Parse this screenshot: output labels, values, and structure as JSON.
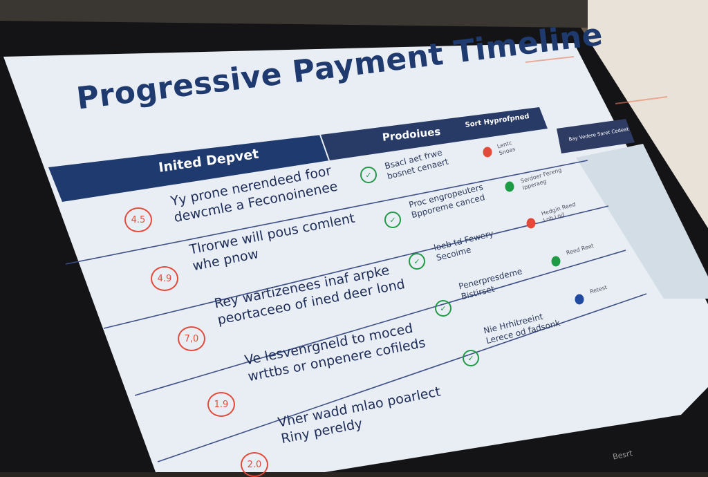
{
  "screen": {
    "title": "Progressive Payment Timeline",
    "header_left": "Inited Depvet",
    "header_mid": "Prodoiues",
    "header_right": "Sort Hyprofpned",
    "side_panel_header": "Bay Vedere Saret Cedeat",
    "bezel_label": "Besrt",
    "colors": {
      "navy": "#1f3a6e",
      "red": "#e5493a",
      "green": "#1f9a45",
      "blue_dot": "#1f4aa0"
    },
    "rows": [
      {
        "badge": "4.5",
        "line1": "Yy prone nerendeed foor",
        "line2": "dewcmle a Feconoinenee",
        "mid1": "Bsacl aet frwe",
        "mid2": "bosnet cenaert",
        "status1": "Lentc",
        "status2": "Snoas",
        "dot": "red"
      },
      {
        "badge": "4.9",
        "line1": "Tlrorwe will pous comlent",
        "line2": "whe pnow",
        "mid1": "Proc engropeuters",
        "mid2": "Bpporeme canced",
        "status1": "Serdoer Fereng",
        "status2": "Ipperaeg",
        "dot": "green"
      },
      {
        "badge": "7,0",
        "line1": "Rey wartizenees inaf arpke",
        "line2": "peortaceeo of ined deer lond",
        "mid1": "loeb td Fewery",
        "mid2": "Secoime",
        "status1": "Hedgin Reed",
        "status2": "Lob Lod",
        "dot": "red"
      },
      {
        "badge": "1.9",
        "line1": "Ve lesvenrgneld to moced",
        "line2": "wrttbs or onpenere cofileds",
        "mid1": "Penerpresdeme",
        "mid2": "Bistirset",
        "status1": "Reed Reet",
        "status2": "",
        "dot": "green"
      },
      {
        "badge": "2.0",
        "line1": "Vher wadd mlao poarlect",
        "line2": "Riny pereldy",
        "mid1": "Nie Hrhitreeint",
        "mid2": "Lerece od fadsonk",
        "status1": "Retest",
        "status2": "",
        "dot": "blue"
      }
    ]
  }
}
